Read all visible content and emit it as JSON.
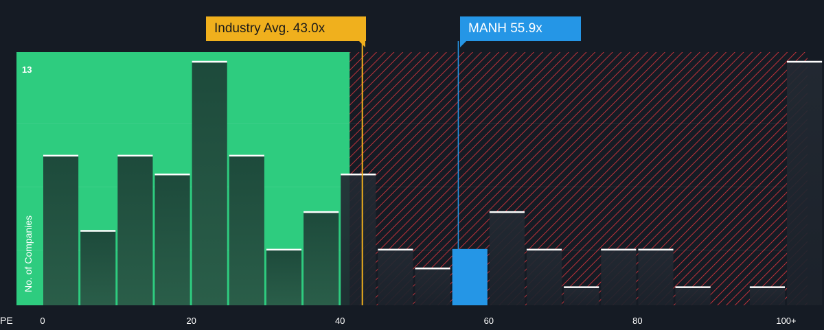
{
  "chart_data": {
    "type": "bar",
    "title": "",
    "xlabel": "PE",
    "ylabel": "No. of Companies",
    "x_ticks": [
      "0",
      "20",
      "40",
      "60",
      "80",
      "100+"
    ],
    "y_ticks": [
      "13"
    ],
    "ylim": [
      0,
      13
    ],
    "bins": [
      {
        "from": 0,
        "to": 5,
        "count": 8
      },
      {
        "from": 5,
        "to": 10,
        "count": 4
      },
      {
        "from": 10,
        "to": 15,
        "count": 8
      },
      {
        "from": 15,
        "to": 20,
        "count": 7
      },
      {
        "from": 20,
        "to": 25,
        "count": 13
      },
      {
        "from": 25,
        "to": 30,
        "count": 8
      },
      {
        "from": 30,
        "to": 35,
        "count": 3
      },
      {
        "from": 35,
        "to": 40,
        "count": 5
      },
      {
        "from": 40,
        "to": 45,
        "count": 7
      },
      {
        "from": 45,
        "to": 50,
        "count": 3
      },
      {
        "from": 50,
        "to": 55,
        "count": 2
      },
      {
        "from": 55,
        "to": 60,
        "count": 3
      },
      {
        "from": 60,
        "to": 65,
        "count": 5
      },
      {
        "from": 65,
        "to": 70,
        "count": 3
      },
      {
        "from": 70,
        "to": 75,
        "count": 1
      },
      {
        "from": 75,
        "to": 80,
        "count": 3
      },
      {
        "from": 80,
        "to": 85,
        "count": 3
      },
      {
        "from": 85,
        "to": 90,
        "count": 1
      },
      {
        "from": 90,
        "to": 95,
        "count": 0
      },
      {
        "from": 95,
        "to": 100,
        "count": 1
      },
      {
        "from": 100,
        "to": 105,
        "count": 13
      }
    ],
    "highlight_bin_from": 55,
    "industry_avg": {
      "label": "Industry Avg. 43.0x",
      "value": 43.0
    },
    "company": {
      "label": "MANH 55.9x",
      "value": 55.9
    },
    "green_zone_upper": 41.3,
    "colors": {
      "background": "#151b24",
      "green_zone": "#2ecc7f",
      "bar": "#1f4a3c",
      "highlight_bar": "#2596e6",
      "industry": "#f0b01d",
      "company": "#2596e6",
      "hatch": "#c0323a"
    }
  }
}
